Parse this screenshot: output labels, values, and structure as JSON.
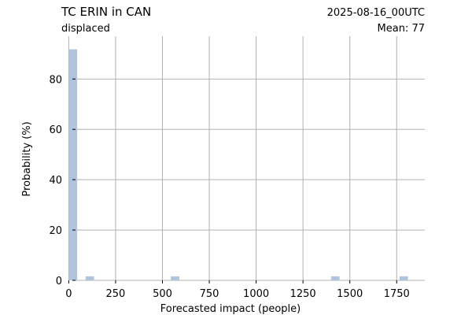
{
  "chart_data": {
    "type": "bar",
    "title": "TC ERIN in CAN",
    "subtitle": "displaced",
    "date_label": "2025-08-16_00UTC",
    "mean_label": "Mean: 77",
    "xlabel": "Forecasted impact (people)",
    "ylabel": "Probability (%)",
    "xlim": [
      -10,
      1900
    ],
    "ylim": [
      0,
      97
    ],
    "x_ticks": [
      0,
      250,
      500,
      750,
      1000,
      1250,
      1500,
      1750
    ],
    "y_ticks": [
      0,
      20,
      40,
      60,
      80
    ],
    "grid": true,
    "bar_color": "#b0c4de",
    "date_color": "#ff0000",
    "grid_color": "#b0b0b0",
    "bin_width": 45,
    "bins": [
      {
        "x_start": 0,
        "value": 91.8
      },
      {
        "x_start": 90,
        "value": 1.6
      },
      {
        "x_start": 545,
        "value": 1.6
      },
      {
        "x_start": 1400,
        "value": 1.6
      },
      {
        "x_start": 1765,
        "value": 1.6
      }
    ]
  }
}
